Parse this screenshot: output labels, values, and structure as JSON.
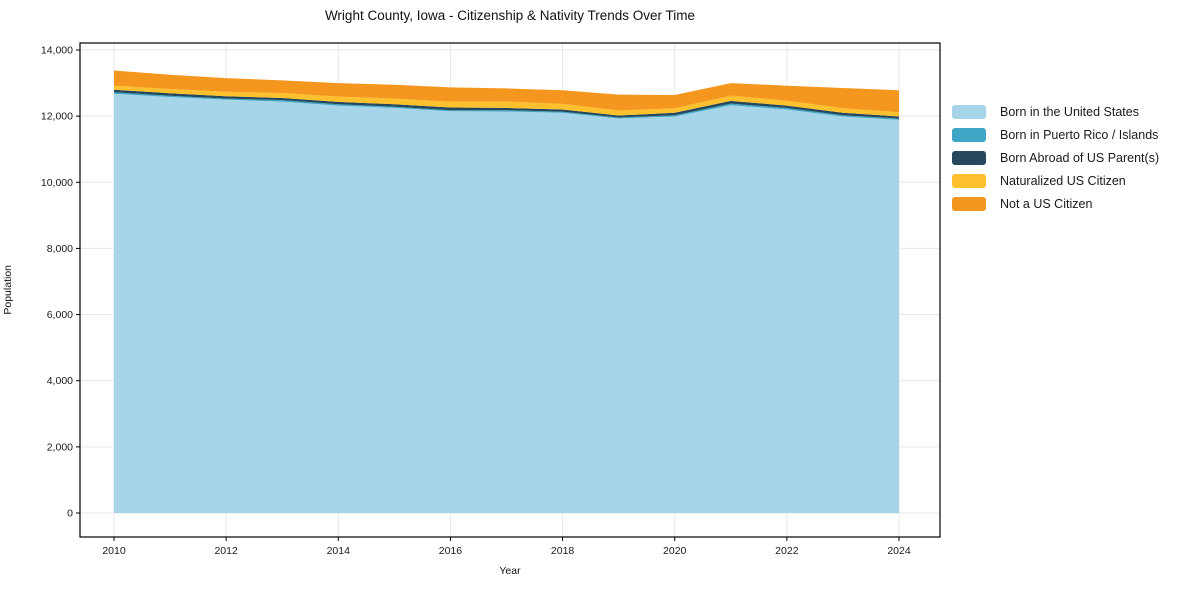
{
  "figure": {
    "title": "Wright County, Iowa - Citizenship & Nativity Trends Over Time",
    "xlabel": "Year",
    "ylabel": "Population"
  },
  "chart_data": {
    "type": "area",
    "stacked": true,
    "title": "Wright County, Iowa - Citizenship & Nativity Trends Over Time",
    "xlabel": "Year",
    "ylabel": "Population",
    "grid": true,
    "legend_position": "right of plot, frameless",
    "x": [
      2010,
      2011,
      2012,
      2013,
      2014,
      2015,
      2016,
      2017,
      2018,
      2019,
      2020,
      2021,
      2022,
      2023,
      2024
    ],
    "xticks": [
      2010,
      2012,
      2014,
      2016,
      2018,
      2020,
      2022,
      2024
    ],
    "xtick_labels": [
      "2010",
      "2012",
      "2014",
      "2016",
      "2018",
      "2020",
      "2022",
      "2024"
    ],
    "yticks": [
      0,
      2000,
      4000,
      6000,
      8000,
      10000,
      12000,
      14000
    ],
    "ytick_labels": [
      "0",
      "2,000",
      "4,000",
      "6,000",
      "8,000",
      "10,000",
      "12,000",
      "14,000"
    ],
    "ylim": [
      0,
      14000
    ],
    "series": [
      {
        "name": "Born in the United States",
        "color": "#a6d4e8",
        "values": [
          12680,
          12580,
          12500,
          12440,
          12320,
          12250,
          12150,
          12140,
          12100,
          11930,
          11990,
          12330,
          12200,
          11990,
          11890
        ]
      },
      {
        "name": "Born in Puerto Rico / Islands",
        "color": "#3fa7c5",
        "values": [
          40,
          35,
          30,
          45,
          40,
          35,
          30,
          40,
          35,
          30,
          40,
          50,
          45,
          40,
          35
        ]
      },
      {
        "name": "Born Abroad of US Parent(s)",
        "color": "#26485c",
        "values": [
          80,
          75,
          70,
          65,
          70,
          75,
          80,
          70,
          65,
          60,
          70,
          80,
          75,
          70,
          65
        ]
      },
      {
        "name": "Naturalized US Citizen",
        "color": "#fcc12d",
        "values": [
          120,
          130,
          140,
          150,
          160,
          170,
          180,
          190,
          170,
          150,
          140,
          160,
          150,
          140,
          130
        ]
      },
      {
        "name": "Not a US Citizen",
        "color": "#f5961f",
        "values": [
          460,
          430,
          410,
          380,
          410,
          420,
          430,
          400,
          410,
          480,
          400,
          380,
          450,
          610,
          660
        ]
      }
    ]
  },
  "colors": {
    "grid": "#e7e7e7",
    "spine": "#000000",
    "tick_text": "#1a1a1a"
  }
}
